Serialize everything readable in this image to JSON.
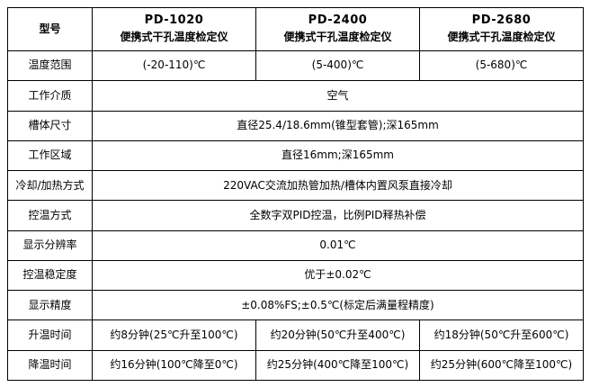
{
  "table": {
    "border_color": "#000000",
    "background_color": "#ffffff",
    "text_color": "#000000",
    "header": {
      "label": "型号",
      "columns": [
        {
          "model": "PD-1020",
          "subtitle": "便携式干孔温度检定仪"
        },
        {
          "model": "PD-2400",
          "subtitle": "便携式干孔温度检定仪"
        },
        {
          "model": "PD-2680",
          "subtitle": "便携式干孔温度检定仪"
        }
      ]
    },
    "rows": [
      {
        "label": "温度范围",
        "type": "per_column",
        "values": [
          "(-20-110)℃",
          "(5-400)℃",
          "(5-680)℃"
        ]
      },
      {
        "label": "工作介质",
        "type": "merged",
        "value": "空气"
      },
      {
        "label": "槽体尺寸",
        "type": "merged",
        "value": "直径25.4/18.6mm(锥型套管);深165mm"
      },
      {
        "label": "工作区域",
        "type": "merged",
        "value": "直径16mm;深165mm"
      },
      {
        "label": "冷却/加热方式",
        "type": "merged",
        "value": "220VAC交流加热管加热/槽体内置风泵直接冷却"
      },
      {
        "label": "控温方式",
        "type": "merged",
        "value": "全数字双PID控温，比例PID释热补偿"
      },
      {
        "label": "显示分辨率",
        "type": "merged",
        "value": "0.01℃"
      },
      {
        "label": "控温稳定度",
        "type": "merged",
        "value": "优于±0.02℃"
      },
      {
        "label": "显示精度",
        "type": "merged",
        "value": "±0.08%FS;±0.5℃(标定后满量程精度)"
      },
      {
        "label": "升温时间",
        "type": "per_column",
        "values": [
          "约8分钟(25℃升至100℃)",
          "约20分钟(50℃升至400℃)",
          "约18分钟(50℃升至600℃)"
        ]
      },
      {
        "label": "降温时间",
        "type": "per_column",
        "values": [
          "约16分钟(100℃降至0℃)",
          "约25分钟(400℃降至100℃)",
          "约25分钟(600℃降至100℃)"
        ]
      }
    ]
  }
}
